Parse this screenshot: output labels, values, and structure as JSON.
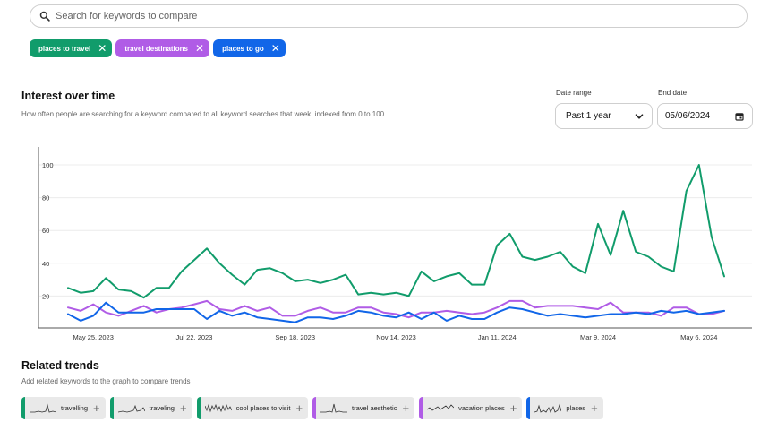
{
  "search": {
    "placeholder": "Search for keywords to compare"
  },
  "keywords": [
    {
      "label": "places to travel",
      "color": "#119c6b"
    },
    {
      "label": "travel destinations",
      "color": "#b05ce6"
    },
    {
      "label": "places to go",
      "color": "#1166e8"
    }
  ],
  "interest": {
    "title": "Interest over time",
    "subtitle": "How often people are searching for a keyword compared to all keyword searches that week, indexed from 0 to 100"
  },
  "date_range": {
    "label": "Date range",
    "value": "Past 1 year"
  },
  "end_date": {
    "label": "End date",
    "value": "05/06/2024"
  },
  "chart_data": {
    "type": "line",
    "x_tick_labels": [
      "May 25, 2023",
      "Jul 22, 2023",
      "Sep 18, 2023",
      "Nov 14, 2023",
      "Jan 11, 2024",
      "Mar 9, 2024",
      "May 6, 2024"
    ],
    "x_tick_index": [
      2,
      10,
      18,
      26,
      34,
      42,
      50
    ],
    "y_ticks": [
      20,
      40,
      60,
      80,
      100
    ],
    "ylim": [
      0,
      100
    ],
    "grid": true,
    "legend": "none",
    "series": [
      {
        "color": "#119c6b",
        "values": [
          25,
          22,
          23,
          31,
          24,
          23,
          19,
          25,
          25,
          35,
          42,
          49,
          40,
          33,
          27,
          36,
          37,
          34,
          29,
          30,
          28,
          30,
          33,
          21,
          22,
          21,
          22,
          20,
          35,
          29,
          32,
          34,
          27,
          27,
          51,
          58,
          44,
          42,
          44,
          47,
          38,
          34,
          64,
          45,
          72,
          47,
          44,
          38,
          35,
          84,
          100,
          56,
          32
        ]
      },
      {
        "color": "#b05ce6",
        "values": [
          13,
          11,
          15,
          10,
          8,
          11,
          14,
          10,
          12,
          13,
          15,
          17,
          12,
          11,
          14,
          11,
          13,
          8,
          8,
          11,
          13,
          10,
          10,
          13,
          13,
          10,
          9,
          7,
          10,
          10,
          11,
          10,
          9,
          10,
          13,
          17,
          17,
          13,
          14,
          14,
          14,
          13,
          12,
          16,
          10,
          10,
          10,
          8,
          13,
          13,
          9,
          9,
          11
        ]
      },
      {
        "color": "#1166e8",
        "values": [
          9,
          5,
          8,
          16,
          10,
          10,
          10,
          12,
          12,
          12,
          12,
          6,
          11,
          8,
          10,
          7,
          6,
          5,
          4,
          7,
          7,
          6,
          8,
          11,
          10,
          8,
          7,
          10,
          6,
          10,
          5,
          8,
          6,
          6,
          10,
          13,
          12,
          10,
          8,
          9,
          8,
          7,
          8,
          9,
          9,
          10,
          9,
          11,
          10,
          11,
          9,
          10,
          11
        ]
      }
    ]
  },
  "related": {
    "title": "Related trends",
    "subtitle": "Add related keywords to the graph to compare trends",
    "items": [
      {
        "label": "travelling",
        "color": "#119c6b"
      },
      {
        "label": "traveling",
        "color": "#119c6b"
      },
      {
        "label": "cool places to visit",
        "color": "#119c6b"
      },
      {
        "label": "travel aesthetic",
        "color": "#b05ce6"
      },
      {
        "label": "vacation places",
        "color": "#b05ce6"
      },
      {
        "label": "places",
        "color": "#1166e8"
      }
    ]
  }
}
